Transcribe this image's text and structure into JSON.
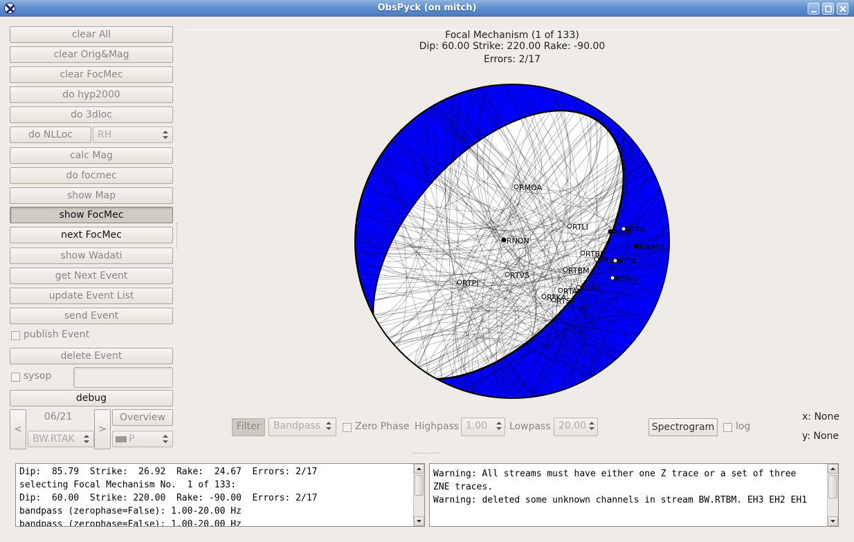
{
  "window": {
    "title": "ObsPyck (on mitch)"
  },
  "sidebar": {
    "buttons": [
      {
        "label": "clear All"
      },
      {
        "label": "clear Orig&Mag"
      },
      {
        "label": "clear FocMec"
      },
      {
        "label": "do hyp2000"
      },
      {
        "label": "do 3dloc"
      },
      {
        "label": "do NLLoc"
      },
      {
        "label": "calc Mag"
      },
      {
        "label": "do focmec"
      },
      {
        "label": "show Map"
      },
      {
        "label": "show FocMec"
      },
      {
        "label": "next FocMec"
      },
      {
        "label": "show Wadati"
      },
      {
        "label": "get Next Event"
      },
      {
        "label": "update Event List"
      },
      {
        "label": "send Event"
      },
      {
        "label": "delete Event"
      },
      {
        "label": "debug"
      }
    ],
    "nlloc_model": "RH",
    "publish_label": "publish Event",
    "sysop_label": "sysop",
    "nav": {
      "prev": "<",
      "next": ">",
      "counter": "06/21",
      "station": "BW.RTAK",
      "overview": "Overview",
      "phase": "P"
    }
  },
  "plot": {
    "title": "Focal Mechanism (1 of 133)",
    "params": "Dip:  60.00  Strike: 220.00  Rake: -90.00",
    "errors": "Errors: 2/17",
    "colors": {
      "compression": "#0000ff",
      "dilatation": "#ffffff",
      "outline": "#000000"
    },
    "stations": [
      {
        "name": "RMOA",
        "polarity": "down"
      },
      {
        "name": "RTLI",
        "polarity": "down"
      },
      {
        "name": "RJOB",
        "polarity": "up"
      },
      {
        "name": "RTPA",
        "polarity": "down"
      },
      {
        "name": "RNON",
        "polarity": "up"
      },
      {
        "name": "RWMO",
        "polarity": "up"
      },
      {
        "name": "RTBE",
        "polarity": "down"
      },
      {
        "name": "RTZA",
        "polarity": "down"
      },
      {
        "name": "RTTA",
        "polarity": "down"
      },
      {
        "name": "RTBM",
        "polarity": "down"
      },
      {
        "name": "RTVS",
        "polarity": "down"
      },
      {
        "name": "RTPI",
        "polarity": "down"
      },
      {
        "name": "RTSL",
        "polarity": "down"
      },
      {
        "name": "RTAK",
        "polarity": "down"
      },
      {
        "name": "RTKA",
        "polarity": "down"
      },
      {
        "name": "RTSA",
        "polarity": "down"
      },
      {
        "name": "RTSH",
        "polarity": "down"
      }
    ]
  },
  "filterbar": {
    "filter": "Filter",
    "type": "Bandpass",
    "zerophase": "Zero Phase",
    "highpass_label": "Highpass",
    "highpass": "1.00",
    "lowpass_label": "Lowpass",
    "lowpass": "20.00",
    "spectrogram": "Spectrogram",
    "log": "log",
    "x_readout": "x: None",
    "y_readout": "y: None"
  },
  "console_left": [
    "Dip:  85.79  Strike:  26.92  Rake:  24.67  Errors: 2/17",
    "selecting Focal Mechanism No.  1 of 133:",
    "Dip:  60.00  Strike: 220.00  Rake: -90.00  Errors: 2/17",
    "bandpass (zerophase=False): 1.00-20.00 Hz",
    "bandpass (zerophase=False): 1.00-20.00 Hz"
  ],
  "console_right": [
    "Warning: All streams must have either one Z trace or a set of three",
    "ZNE traces.",
    "Warning: deleted some unknown channels in stream BW.RTBM. EH3 EH2 EH1"
  ]
}
